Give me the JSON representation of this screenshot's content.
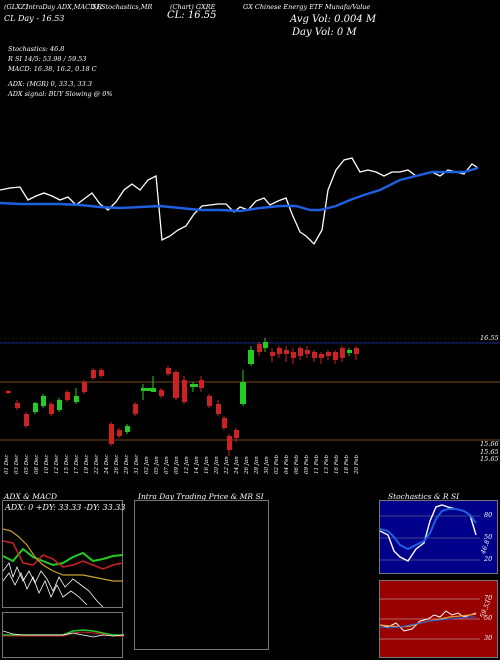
{
  "header": {
    "line1": {
      "code": "(GLXZ)",
      "indicators": "IntraDay ADX,MACD,R",
      "stoch": "SI,Stochastics,MR",
      "close_label": "(Chart) GXRE",
      "title": "GX Chinese Energy ETF Munafa/Value"
    },
    "day_range": "CL Day - 16.53",
    "close": "CL: 16.55",
    "avg_vol": "Avg Vol: 0.004   M",
    "day_vol": "Day Vol: 0   M"
  },
  "readouts": {
    "stochastics": "Stochastics: 46.8",
    "rsi": "R                SI 14/5: 53.98 / 59.53",
    "macd": "MACD: 16.38, 16.2, 0.18  C",
    "adx": "ADX:                           (MGR) 0, 33.3, 33.3",
    "adx_signal": "ADX  signal:                          BUY Slowing @ 0%"
  },
  "price_axis": {
    "upper_label": "16.55",
    "lower_labels": [
      "15.66",
      "15.65",
      "15.65"
    ]
  },
  "dates": [
    "01 Dec",
    "03 Dec",
    "05 Dec",
    "08 Dec",
    "10 Dec",
    "12 Dec",
    "15 Dec",
    "17 Dec",
    "19 Dec",
    "22 Dec",
    "24 Dec",
    "26 Dec",
    "29 Dec",
    "31 Dec",
    "02 Jan",
    "05 Jan",
    "07 Jan",
    "09 Jan",
    "12 Jan",
    "14 Jan",
    "16 Jan",
    "20 Jan",
    "22 Jan",
    "24 Jan",
    "26 Jan",
    "28 Jan",
    "30 Jan",
    "02 Feb",
    "04 Feb",
    "06 Feb",
    "09 Feb",
    "11 Feb",
    "13 Feb",
    "16 Feb",
    "18 Feb",
    "20 Feb"
  ],
  "bottom_panels": {
    "adx_title": "ADX  & MACD",
    "adx_readout": "ADX: 0   +DY: 33.33  -DY: 33.33",
    "intraday_title": "Intra Day Trading Price  & MR                        SI",
    "stoch_title": "Stochastics & R                  SI",
    "stoch_ticks": [
      "80",
      "50",
      "20"
    ],
    "rsi_ticks": [
      "70",
      "50",
      "30"
    ],
    "stoch_side_label": "46.8",
    "rsi_side_label": "59.53"
  },
  "colors": {
    "up": "#22cc22",
    "down": "#cc2222",
    "ma": "#1f5fe0",
    "rsi_bg": "#990000",
    "stoch_bg": "#00008a"
  }
}
